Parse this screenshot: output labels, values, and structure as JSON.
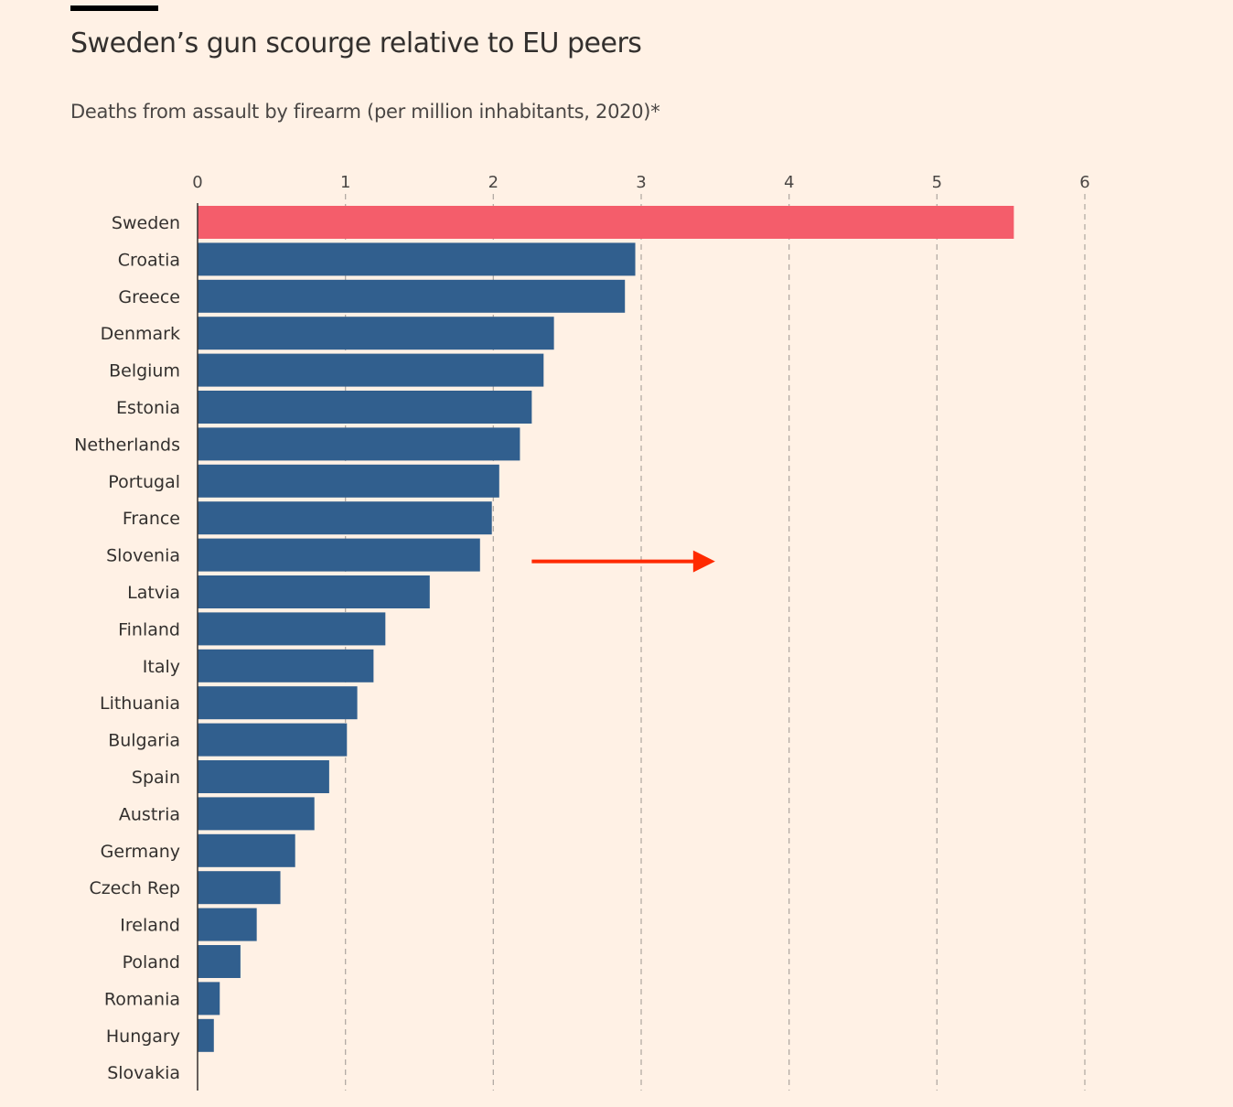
{
  "chart_data": {
    "type": "bar",
    "orientation": "horizontal",
    "title": "Sweden’s gun scourge relative to EU peers",
    "subtitle": "Deaths from assault by firearm (per million inhabitants, 2020)*",
    "xlim": [
      0,
      6
    ],
    "xticks": [
      "0",
      "1",
      "2",
      "3",
      "4",
      "5",
      "6"
    ],
    "grid": true,
    "categories": [
      "Sweden",
      "Croatia",
      "Greece",
      "Denmark",
      "Belgium",
      "Estonia",
      "Netherlands",
      "Portugal",
      "France",
      "Slovenia",
      "Latvia",
      "Finland",
      "Italy",
      "Lithuania",
      "Bulgaria",
      "Spain",
      "Austria",
      "Germany",
      "Czech Rep",
      "Ireland",
      "Poland",
      "Romania",
      "Hungary",
      "Slovakia"
    ],
    "values": [
      5.52,
      2.96,
      2.89,
      2.41,
      2.34,
      2.26,
      2.18,
      2.04,
      1.99,
      1.91,
      1.57,
      1.27,
      1.19,
      1.08,
      1.01,
      0.89,
      0.79,
      0.66,
      0.56,
      0.4,
      0.29,
      0.15,
      0.11,
      0
    ],
    "highlight": "Sweden",
    "colors": {
      "highlight": "#f45d6b",
      "default": "#315f8e",
      "annotation_arrow": "#ff2a00",
      "background": "#fff1e5"
    },
    "annotation": {
      "type": "arrow",
      "direction": "right",
      "from_value": 2.26,
      "to_value": 3.5,
      "row": "Slovenia"
    }
  }
}
